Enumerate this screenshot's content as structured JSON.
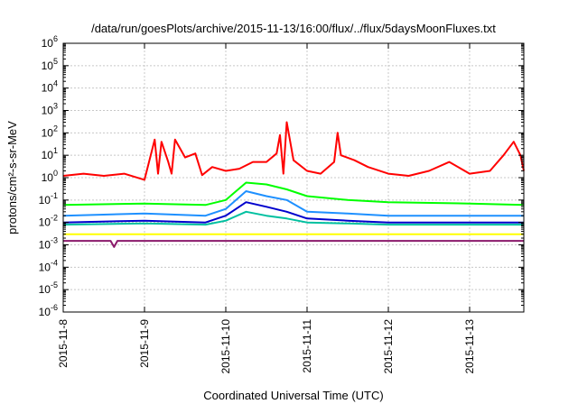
{
  "chart_data": {
    "type": "line",
    "title": "/data/run/goesPlots/archive/2015-11-13/16:00/flux/../flux/5daysMoonFluxes.txt",
    "xlabel": "Coordinated Universal Time (UTC)",
    "ylabel": "protons/cm²-s-sr-MeV",
    "yscale": "log",
    "ylim": [
      1e-06,
      1000000.0
    ],
    "xlim": [
      "2015-11-08T00:00",
      "2015-11-13T16:00"
    ],
    "grid": true,
    "x_tick_labels": [
      "2015-11-8",
      "2015-11-9",
      "2015-11-10",
      "2015-11-11",
      "2015-11-12",
      "2015-11-13"
    ],
    "y_tick_labels": [
      {
        "base": "10",
        "exp": "-6"
      },
      {
        "base": "10",
        "exp": "-5"
      },
      {
        "base": "10",
        "exp": "-4"
      },
      {
        "base": "10",
        "exp": "-3"
      },
      {
        "base": "10",
        "exp": "-2"
      },
      {
        "base": "10",
        "exp": "-1"
      },
      {
        "base": "10",
        "exp": "0"
      },
      {
        "base": "10",
        "exp": "1"
      },
      {
        "base": "10",
        "exp": "2"
      },
      {
        "base": "10",
        "exp": "3"
      },
      {
        "base": "10",
        "exp": "4"
      },
      {
        "base": "10",
        "exp": "5"
      },
      {
        "base": "10",
        "exp": "6"
      }
    ],
    "series": [
      {
        "color": "#ff0000",
        "x": [
          "2015-11-08T00:00",
          "2015-11-08T06:00",
          "2015-11-08T12:00",
          "2015-11-08T18:00",
          "2015-11-09T00:00",
          "2015-11-09T03:00",
          "2015-11-09T04:00",
          "2015-11-09T05:00",
          "2015-11-09T07:00",
          "2015-11-09T08:00",
          "2015-11-09T09:00",
          "2015-11-09T12:00",
          "2015-11-09T15:00",
          "2015-11-09T17:00",
          "2015-11-09T20:00",
          "2015-11-10T00:00",
          "2015-11-10T04:00",
          "2015-11-10T08:00",
          "2015-11-10T12:00",
          "2015-11-10T15:00",
          "2015-11-10T16:00",
          "2015-11-10T17:00",
          "2015-11-10T18:00",
          "2015-11-10T20:00",
          "2015-11-11T00:00",
          "2015-11-11T04:00",
          "2015-11-11T08:00",
          "2015-11-11T09:00",
          "2015-11-11T10:00",
          "2015-11-11T14:00",
          "2015-11-11T18:00",
          "2015-11-12T00:00",
          "2015-11-12T06:00",
          "2015-11-12T12:00",
          "2015-11-12T18:00",
          "2015-11-13T00:00",
          "2015-11-13T06:00",
          "2015-11-13T10:00",
          "2015-11-13T13:00",
          "2015-11-13T15:00",
          "2015-11-13T16:00"
        ],
        "y": [
          1.2,
          1.5,
          1.2,
          1.5,
          0.8,
          50,
          1.5,
          40,
          5,
          1.5,
          50,
          8,
          12,
          1.3,
          3,
          2,
          2.5,
          5,
          5,
          12,
          80,
          1.5,
          300,
          6,
          2,
          1.5,
          5,
          100,
          10,
          6,
          3,
          1.5,
          1.2,
          2,
          5,
          1.5,
          2,
          10,
          40,
          10,
          2
        ]
      },
      {
        "color": "#00ff00",
        "x": [
          "2015-11-08T00:00",
          "2015-11-09T00:00",
          "2015-11-09T18:00",
          "2015-11-10T00:00",
          "2015-11-10T06:00",
          "2015-11-10T12:00",
          "2015-11-10T18:00",
          "2015-11-11T00:00",
          "2015-11-11T12:00",
          "2015-11-12T00:00",
          "2015-11-13T00:00",
          "2015-11-13T16:00"
        ],
        "y": [
          0.06,
          0.07,
          0.06,
          0.1,
          0.6,
          0.5,
          0.3,
          0.15,
          0.1,
          0.08,
          0.07,
          0.06
        ]
      },
      {
        "color": "#1e90ff",
        "x": [
          "2015-11-08T00:00",
          "2015-11-09T00:00",
          "2015-11-09T18:00",
          "2015-11-10T00:00",
          "2015-11-10T06:00",
          "2015-11-10T12:00",
          "2015-11-10T18:00",
          "2015-11-11T00:00",
          "2015-11-11T12:00",
          "2015-11-12T00:00",
          "2015-11-13T00:00",
          "2015-11-13T16:00"
        ],
        "y": [
          0.02,
          0.025,
          0.02,
          0.04,
          0.25,
          0.15,
          0.1,
          0.03,
          0.025,
          0.02,
          0.02,
          0.02
        ]
      },
      {
        "color": "#00c0a0",
        "x": [
          "2015-11-08T00:00",
          "2015-11-09T00:00",
          "2015-11-09T18:00",
          "2015-11-10T00:00",
          "2015-11-10T06:00",
          "2015-11-10T12:00",
          "2015-11-10T18:00",
          "2015-11-11T00:00",
          "2015-11-11T12:00",
          "2015-11-12T00:00",
          "2015-11-13T00:00",
          "2015-11-13T16:00"
        ],
        "y": [
          0.008,
          0.009,
          0.008,
          0.012,
          0.03,
          0.02,
          0.015,
          0.01,
          0.009,
          0.008,
          0.008,
          0.008
        ]
      },
      {
        "color": "#0000cd",
        "x": [
          "2015-11-08T00:00",
          "2015-11-09T00:00",
          "2015-11-09T18:00",
          "2015-11-10T00:00",
          "2015-11-10T06:00",
          "2015-11-10T12:00",
          "2015-11-10T18:00",
          "2015-11-11T00:00",
          "2015-11-11T12:00",
          "2015-11-12T00:00",
          "2015-11-13T00:00",
          "2015-11-13T16:00"
        ],
        "y": [
          0.01,
          0.012,
          0.01,
          0.02,
          0.08,
          0.05,
          0.03,
          0.015,
          0.012,
          0.01,
          0.01,
          0.01
        ]
      },
      {
        "color": "#ffff00",
        "x": [
          "2015-11-08T00:00",
          "2015-11-09T00:00",
          "2015-11-10T00:00",
          "2015-11-11T00:00",
          "2015-11-12T00:00",
          "2015-11-13T00:00",
          "2015-11-13T16:00"
        ],
        "y": [
          0.003,
          0.003,
          0.003,
          0.003,
          0.003,
          0.003,
          0.003
        ]
      },
      {
        "color": "#8b1a6b",
        "x": [
          "2015-11-08T00:00",
          "2015-11-08T14:00",
          "2015-11-08T15:00",
          "2015-11-08T16:00",
          "2015-11-09T00:00",
          "2015-11-10T00:00",
          "2015-11-11T00:00",
          "2015-11-12T00:00",
          "2015-11-13T00:00",
          "2015-11-13T16:00"
        ],
        "y": [
          0.0015,
          0.0015,
          0.0008,
          0.0015,
          0.0015,
          0.0015,
          0.0015,
          0.0015,
          0.0015,
          0.0015
        ]
      }
    ]
  }
}
